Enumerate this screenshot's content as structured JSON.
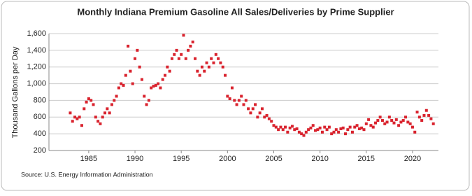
{
  "chart_data": {
    "type": "scatter",
    "title": "Monthly Indiana Premium Gasoline All Sales/Deliveries by Prime Supplier",
    "y_label": "Thousand Gallons per Day",
    "source": "Source: U.S. Energy Information Administration",
    "color": "#d9232e",
    "grid": true,
    "xlim": [
      1980.7,
      2022.8
    ],
    "xticks": [
      1985,
      1990,
      1995,
      2000,
      2005,
      2010,
      2015,
      2020
    ],
    "ylim": [
      200,
      1600
    ],
    "yticks": [
      200,
      400,
      600,
      800,
      {
        "value": 1000,
        "label": "1,000"
      },
      {
        "value": 1200,
        "label": "1,200"
      },
      {
        "value": 1400,
        "label": "1,400"
      },
      {
        "value": 1600,
        "label": "1,600"
      }
    ],
    "x": [
      1983,
      1983.25,
      1983.5,
      1983.75,
      1984,
      1984.25,
      1984.5,
      1984.75,
      1985,
      1985.25,
      1985.5,
      1985.75,
      1986,
      1986.25,
      1986.5,
      1986.75,
      1987,
      1987.25,
      1987.5,
      1987.75,
      1988,
      1988.25,
      1988.5,
      1988.75,
      1989,
      1989.25,
      1989.5,
      1989.75,
      1990,
      1990.25,
      1990.5,
      1990.75,
      1991,
      1991.25,
      1991.5,
      1991.75,
      1992,
      1992.25,
      1992.5,
      1992.75,
      1993,
      1993.25,
      1993.5,
      1993.75,
      1994,
      1994.25,
      1994.5,
      1994.75,
      1995,
      1995.25,
      1995.5,
      1995.75,
      1996,
      1996.25,
      1996.5,
      1996.75,
      1997,
      1997.25,
      1997.5,
      1997.75,
      1998,
      1998.25,
      1998.5,
      1998.75,
      1999,
      1999.25,
      1999.5,
      1999.75,
      2000,
      2000.25,
      2000.5,
      2000.75,
      2001,
      2001.25,
      2001.5,
      2001.75,
      2002,
      2002.25,
      2002.5,
      2002.75,
      2003,
      2003.25,
      2003.5,
      2003.75,
      2004,
      2004.25,
      2004.5,
      2004.75,
      2005,
      2005.25,
      2005.5,
      2005.75,
      2006,
      2006.25,
      2006.5,
      2006.75,
      2007,
      2007.25,
      2007.5,
      2007.75,
      2008,
      2008.25,
      2008.5,
      2008.75,
      2009,
      2009.25,
      2009.5,
      2009.75,
      2010,
      2010.25,
      2010.5,
      2010.75,
      2011,
      2011.25,
      2011.5,
      2011.75,
      2012,
      2012.25,
      2012.5,
      2012.75,
      2013,
      2013.25,
      2013.5,
      2013.75,
      2014,
      2014.25,
      2014.5,
      2014.75,
      2015,
      2015.25,
      2015.5,
      2015.75,
      2016,
      2016.25,
      2016.5,
      2016.75,
      2017,
      2017.25,
      2017.5,
      2017.75,
      2018,
      2018.25,
      2018.5,
      2018.75,
      2019,
      2019.25,
      2019.5,
      2019.75,
      2020,
      2020.25,
      2020.5,
      2020.75,
      2021,
      2021.25,
      2021.5,
      2021.75,
      2022,
      2022.25
    ],
    "values": [
      650,
      550,
      600,
      580,
      600,
      500,
      700,
      780,
      820,
      800,
      750,
      600,
      550,
      520,
      600,
      650,
      700,
      650,
      750,
      800,
      850,
      950,
      1000,
      980,
      1100,
      1450,
      1150,
      1000,
      1300,
      1400,
      1200,
      1050,
      850,
      750,
      800,
      950,
      970,
      980,
      1000,
      950,
      1050,
      1100,
      1200,
      1150,
      1300,
      1350,
      1400,
      1300,
      1350,
      1580,
      1300,
      1400,
      1450,
      1500,
      1300,
      1150,
      1100,
      1200,
      1150,
      1250,
      1200,
      1300,
      1250,
      1350,
      1300,
      1250,
      1200,
      1100,
      850,
      820,
      950,
      800,
      750,
      800,
      850,
      750,
      800,
      700,
      650,
      700,
      750,
      600,
      650,
      700,
      600,
      620,
      580,
      550,
      500,
      480,
      450,
      480,
      450,
      480,
      420,
      470,
      490,
      450,
      460,
      420,
      400,
      380,
      420,
      450,
      470,
      500,
      440,
      450,
      470,
      420,
      480,
      450,
      480,
      400,
      420,
      450,
      420,
      460,
      470,
      400,
      450,
      480,
      420,
      480,
      500,
      460,
      470,
      450,
      520,
      570,
      500,
      480,
      530,
      560,
      600,
      560,
      520,
      540,
      600,
      560,
      530,
      570,
      500,
      540,
      560,
      600,
      540,
      520,
      480,
      420,
      660,
      600,
      560,
      620,
      680,
      620,
      580,
      520
    ]
  }
}
